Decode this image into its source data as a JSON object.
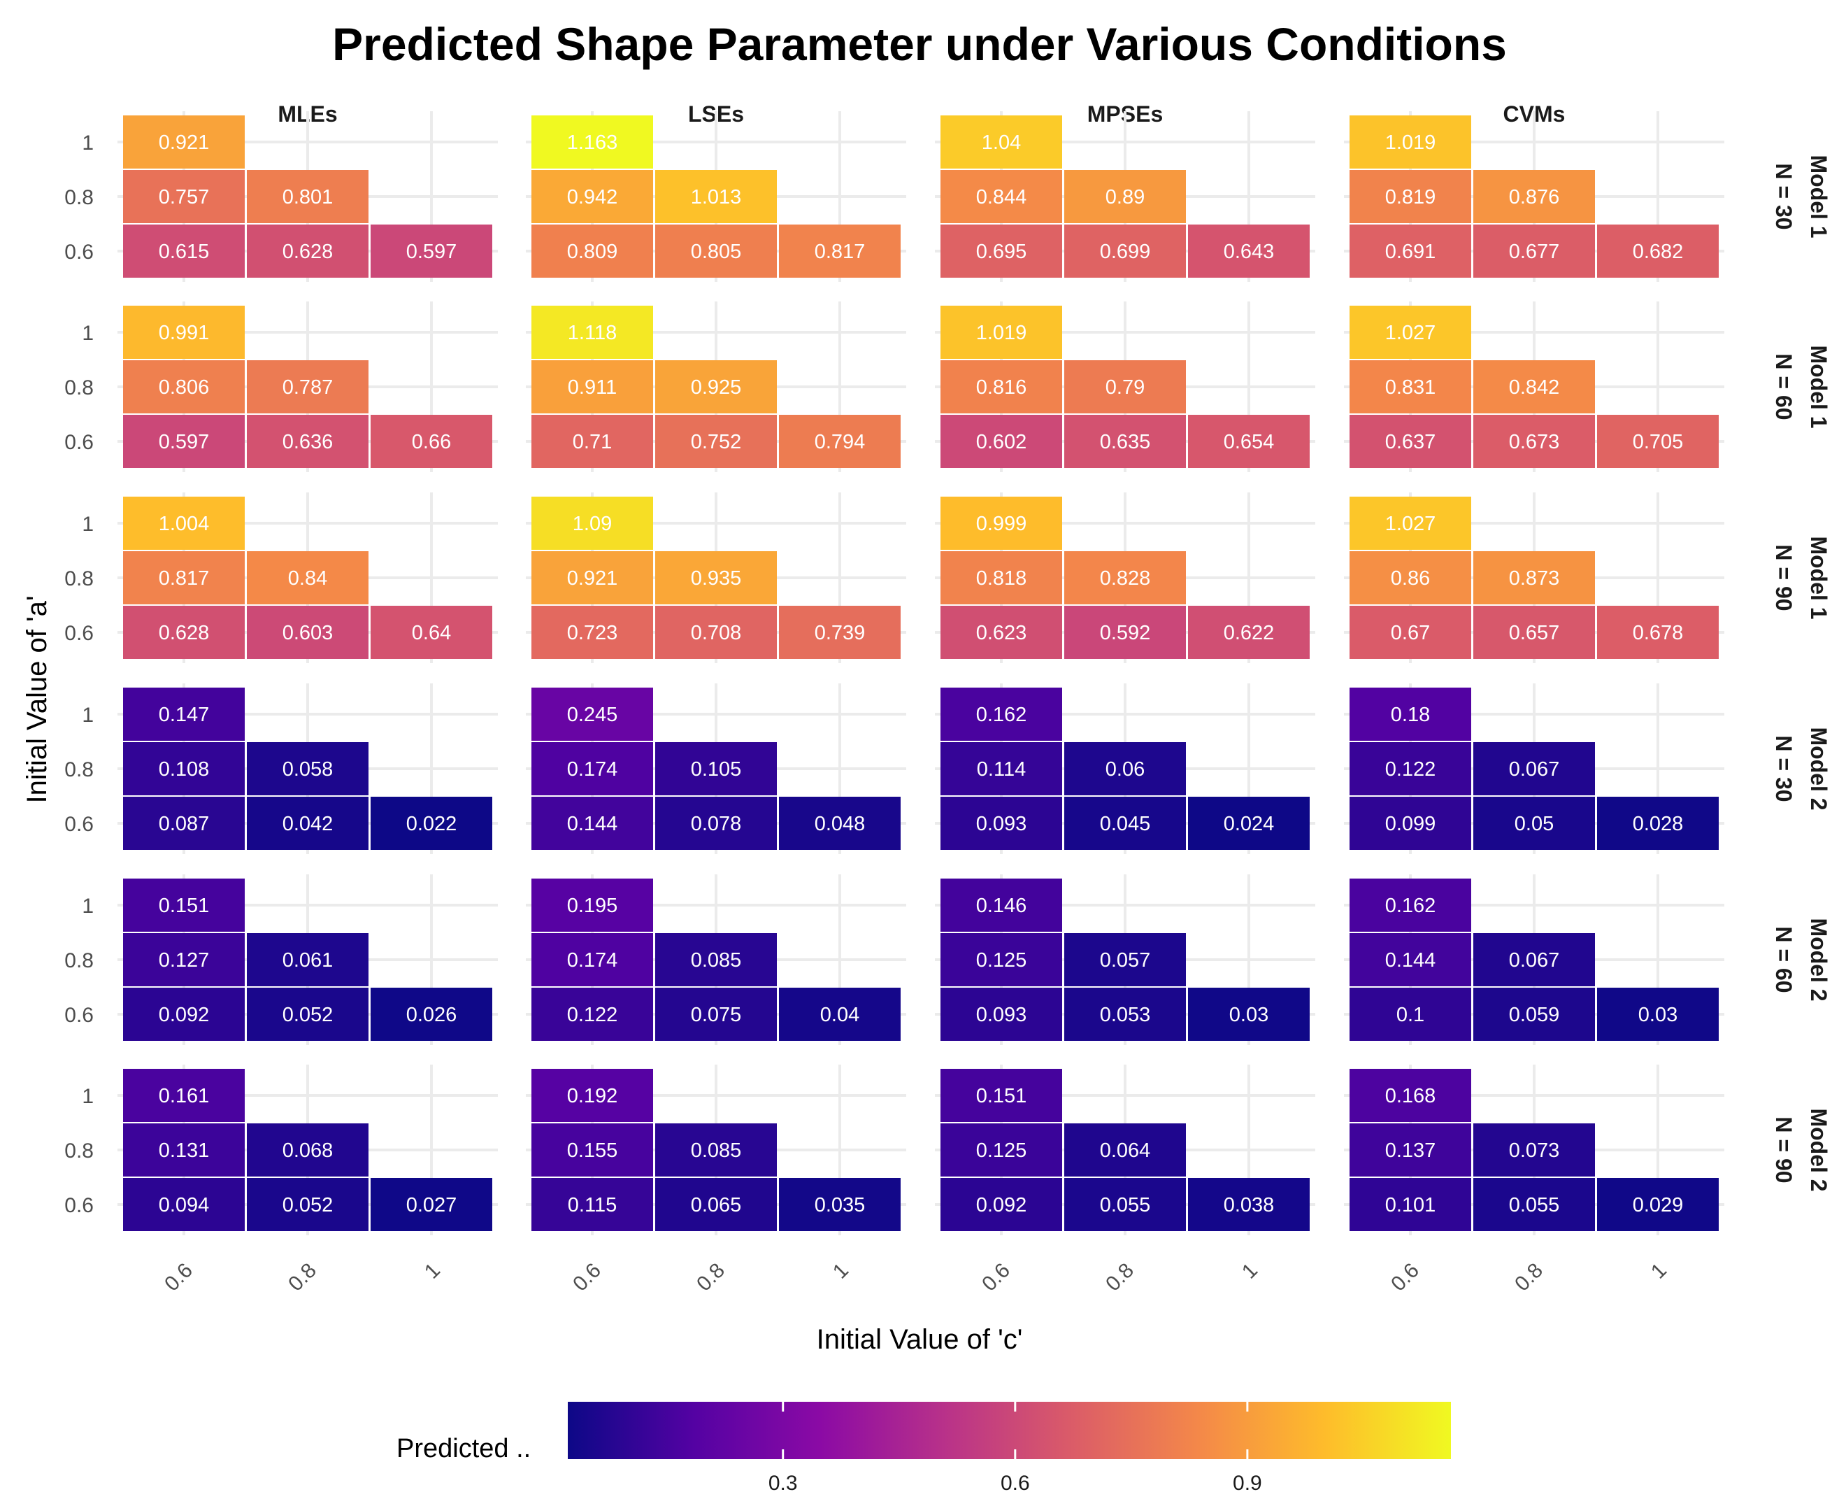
{
  "chart_data": {
    "type": "heatmap",
    "title": "Predicted Shape Parameter under Various Conditions",
    "xlabel": "Initial Value of 'c'",
    "ylabel": "Initial Value of 'a'",
    "x_categories": [
      "0.6",
      "0.8",
      "1"
    ],
    "y_categories": [
      "0.6",
      "0.8",
      "1"
    ],
    "methods": [
      "MLEs",
      "LSEs",
      "MPSEs",
      "CVMs"
    ],
    "row_facets": [
      {
        "line1": "Model 1",
        "line2": "N = 30"
      },
      {
        "line1": "Model 1",
        "line2": "N = 60"
      },
      {
        "line1": "Model 1",
        "line2": "N = 90"
      },
      {
        "line1": "Model 2",
        "line2": "N = 30"
      },
      {
        "line1": "Model 2",
        "line2": "N = 60"
      },
      {
        "line1": "Model 2",
        "line2": "N = 90"
      }
    ],
    "cell_order": "a=1:c=0.6 | a=0.8:c=0.6,0.8 | a=0.6:c=0.6,0.8,1",
    "values": [
      [
        [
          "0.921",
          "0.757",
          "0.801",
          "0.615",
          "0.628",
          "0.597"
        ],
        [
          "1.163",
          "0.942",
          "1.013",
          "0.809",
          "0.805",
          "0.817"
        ],
        [
          "1.04",
          "0.844",
          "0.89",
          "0.695",
          "0.699",
          "0.643"
        ],
        [
          "1.019",
          "0.819",
          "0.876",
          "0.691",
          "0.677",
          "0.682"
        ]
      ],
      [
        [
          "0.991",
          "0.806",
          "0.787",
          "0.597",
          "0.636",
          "0.66"
        ],
        [
          "1.118",
          "0.911",
          "0.925",
          "0.71",
          "0.752",
          "0.794"
        ],
        [
          "1.019",
          "0.816",
          "0.79",
          "0.602",
          "0.635",
          "0.654"
        ],
        [
          "1.027",
          "0.831",
          "0.842",
          "0.637",
          "0.673",
          "0.705"
        ]
      ],
      [
        [
          "1.004",
          "0.817",
          "0.84",
          "0.628",
          "0.603",
          "0.64"
        ],
        [
          "1.09",
          "0.921",
          "0.935",
          "0.723",
          "0.708",
          "0.739"
        ],
        [
          "0.999",
          "0.818",
          "0.828",
          "0.623",
          "0.592",
          "0.622"
        ],
        [
          "1.027",
          "0.86",
          "0.873",
          "0.67",
          "0.657",
          "0.678"
        ]
      ],
      [
        [
          "0.147",
          "0.108",
          "0.058",
          "0.087",
          "0.042",
          "0.022"
        ],
        [
          "0.245",
          "0.174",
          "0.105",
          "0.144",
          "0.078",
          "0.048"
        ],
        [
          "0.162",
          "0.114",
          "0.06",
          "0.093",
          "0.045",
          "0.024"
        ],
        [
          "0.18",
          "0.122",
          "0.067",
          "0.099",
          "0.05",
          "0.028"
        ]
      ],
      [
        [
          "0.151",
          "0.127",
          "0.061",
          "0.092",
          "0.052",
          "0.026"
        ],
        [
          "0.195",
          "0.174",
          "0.085",
          "0.122",
          "0.075",
          "0.04"
        ],
        [
          "0.146",
          "0.125",
          "0.057",
          "0.093",
          "0.053",
          "0.03"
        ],
        [
          "0.162",
          "0.144",
          "0.067",
          "0.1",
          "0.059",
          "0.03"
        ]
      ],
      [
        [
          "0.161",
          "0.131",
          "0.068",
          "0.094",
          "0.052",
          "0.027"
        ],
        [
          "0.192",
          "0.155",
          "0.085",
          "0.115",
          "0.065",
          "0.035"
        ],
        [
          "0.151",
          "0.125",
          "0.064",
          "0.092",
          "0.055",
          "0.038"
        ],
        [
          "0.168",
          "0.137",
          "0.073",
          "0.101",
          "0.055",
          "0.029"
        ]
      ]
    ],
    "legend": {
      "title": "Predicted ..",
      "colormap": "plasma",
      "range": [
        0.022,
        1.163
      ],
      "ticks": [
        "0.3",
        "0.6",
        "0.9"
      ]
    }
  }
}
